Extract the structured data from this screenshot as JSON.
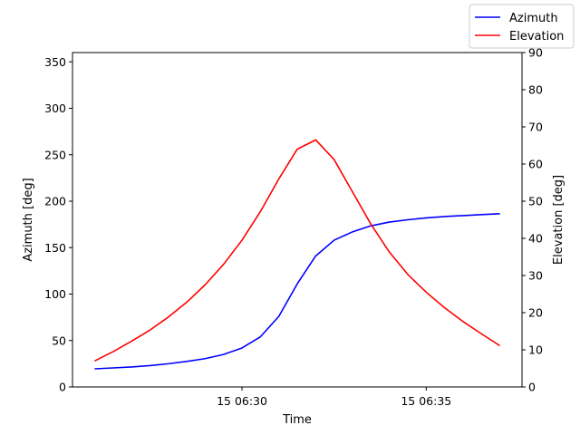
{
  "chart_data": {
    "type": "line",
    "xlabel": "Time",
    "ylabel_left": "Azimuth [deg]",
    "ylabel_right": "Elevation [deg]",
    "x_unit": "minutes",
    "x_ticks": [
      {
        "value": 30,
        "label": "15 06:30"
      },
      {
        "value": 35,
        "label": "15 06:35"
      }
    ],
    "x": [
      26.0,
      26.5,
      27.0,
      27.5,
      28.0,
      28.5,
      29.0,
      29.5,
      30.0,
      30.5,
      31.0,
      31.5,
      32.0,
      32.5,
      33.0,
      33.5,
      34.0,
      34.5,
      35.0,
      35.5,
      36.0,
      36.5,
      37.0
    ],
    "xlim": [
      25.4,
      37.6
    ],
    "left_axis": {
      "ylim": [
        0,
        360
      ],
      "ticks": [
        0,
        50,
        100,
        150,
        200,
        250,
        300,
        350
      ]
    },
    "right_axis": {
      "ylim": [
        0,
        90
      ],
      "ticks": [
        0,
        10,
        20,
        30,
        40,
        50,
        60,
        70,
        80,
        90
      ]
    },
    "series": [
      {
        "name": "Azimuth",
        "axis": "left",
        "color": "#0000ff",
        "values": [
          19.5,
          20.5,
          21.5,
          23.0,
          25.0,
          27.5,
          30.5,
          35.0,
          42.0,
          54.0,
          76.0,
          111.0,
          141.0,
          158.0,
          167.0,
          173.5,
          177.5,
          180.0,
          182.0,
          183.5,
          184.5,
          185.5,
          186.5
        ]
      },
      {
        "name": "Elevation",
        "axis": "right",
        "color": "#ff0000",
        "values": [
          7.0,
          9.5,
          12.3,
          15.3,
          18.8,
          22.8,
          27.5,
          33.0,
          39.5,
          47.2,
          56.0,
          64.0,
          66.5,
          61.2,
          52.5,
          43.8,
          36.3,
          30.3,
          25.5,
          21.3,
          17.6,
          14.3,
          11.1
        ]
      }
    ],
    "legend": {
      "placement": "top-right, outside axes"
    }
  }
}
